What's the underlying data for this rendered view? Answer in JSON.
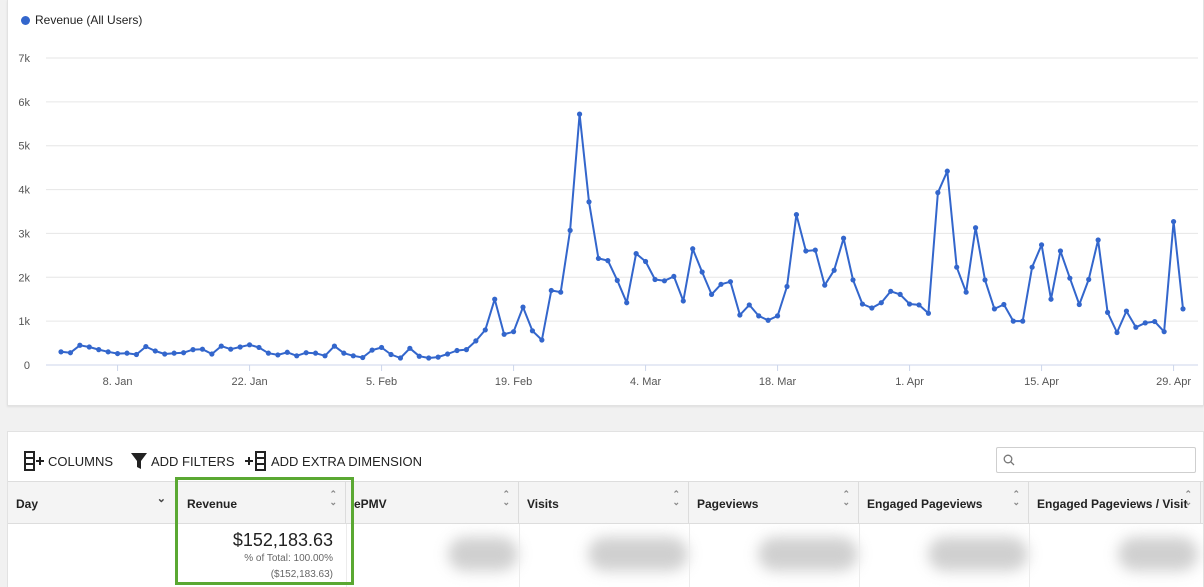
{
  "chart_data": {
    "type": "line",
    "legend": "Revenue (All Users)",
    "series_color": "#3366cc",
    "ylim": [
      0,
      7000
    ],
    "yticks": [
      0,
      1000,
      2000,
      3000,
      4000,
      5000,
      6000,
      7000
    ],
    "ytick_labels": [
      "0",
      "1k",
      "2k",
      "3k",
      "4k",
      "5k",
      "6k",
      "7k"
    ],
    "xtick_labels": [
      "8. Jan",
      "22. Jan",
      "5. Feb",
      "19. Feb",
      "4. Mar",
      "18. Mar",
      "1. Apr",
      "15. Apr",
      "29. Apr"
    ],
    "xtick_index": [
      6,
      20,
      34,
      48,
      62,
      76,
      90,
      104,
      118
    ],
    "grid": true,
    "values": [
      300,
      280,
      450,
      410,
      350,
      300,
      260,
      270,
      240,
      420,
      320,
      250,
      270,
      280,
      350,
      360,
      250,
      430,
      360,
      410,
      460,
      400,
      270,
      230,
      290,
      210,
      280,
      270,
      210,
      430,
      270,
      210,
      170,
      340,
      400,
      240,
      160,
      380,
      200,
      160,
      180,
      250,
      330,
      350,
      550,
      800,
      1500,
      700,
      760,
      1320,
      780,
      570,
      1700,
      1660,
      3070,
      5720,
      3720,
      2430,
      2380,
      1930,
      1420,
      2540,
      2360,
      1950,
      1920,
      2020,
      1460,
      2650,
      2120,
      1610,
      1840,
      1900,
      1140,
      1370,
      1120,
      1020,
      1120,
      1790,
      3430,
      2600,
      2620,
      1820,
      2160,
      2890,
      1940,
      1390,
      1300,
      1420,
      1680,
      1610,
      1390,
      1370,
      1180,
      3930,
      4420,
      2230,
      1660,
      3130,
      1940,
      1280,
      1380,
      1000,
      1000,
      2230,
      2740,
      1500,
      2600,
      1980,
      1380,
      1950,
      2850,
      1200,
      740,
      1230,
      860,
      960,
      990,
      760,
      3270,
      1280
    ]
  },
  "toolbar": {
    "columns_label": "COLUMNS",
    "filters_label": "ADD FILTERS",
    "dimension_label": "ADD EXTRA DIMENSION",
    "search_placeholder": ""
  },
  "table": {
    "headers": [
      "Day",
      "Revenue",
      "ePMV",
      "Visits",
      "Pageviews",
      "Engaged Pageviews",
      "Engaged Pageviews / Visit"
    ],
    "total": {
      "revenue": "$152,183.63",
      "percent": "% of Total: 100.00%",
      "revenue_paren": "($152,183.63)"
    }
  },
  "colors": {
    "highlight": "#5aa832",
    "accent": "#3366cc"
  }
}
